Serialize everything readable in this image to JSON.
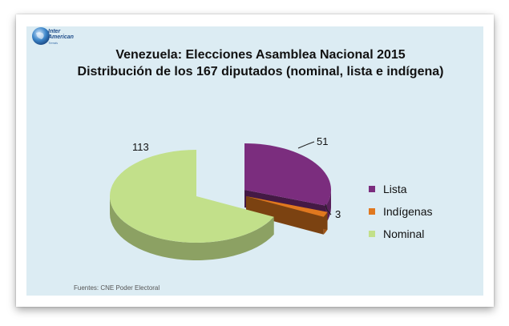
{
  "logo": {
    "line1": "Inter",
    "line2": "American",
    "line3": "Trends",
    "icon": "globe-icon"
  },
  "chart_data": {
    "type": "pie",
    "title": "Venezuela: Elecciones Asamblea Nacional 2015",
    "subtitle": "Distribución de los 167 diputados  (nominal, lista e indígena)",
    "categories": [
      "Lista",
      "Indígenas",
      "Nominal"
    ],
    "values": [
      51,
      3,
      113
    ],
    "colors": [
      "#7b2d7e",
      "#e0781f",
      "#c2e08a"
    ],
    "data_labels": [
      "51",
      "3",
      "113"
    ],
    "legend_position": "right",
    "exploded": [
      true,
      true,
      false
    ],
    "3d": true
  },
  "source": "Fuentes: CNE Poder Electoral"
}
